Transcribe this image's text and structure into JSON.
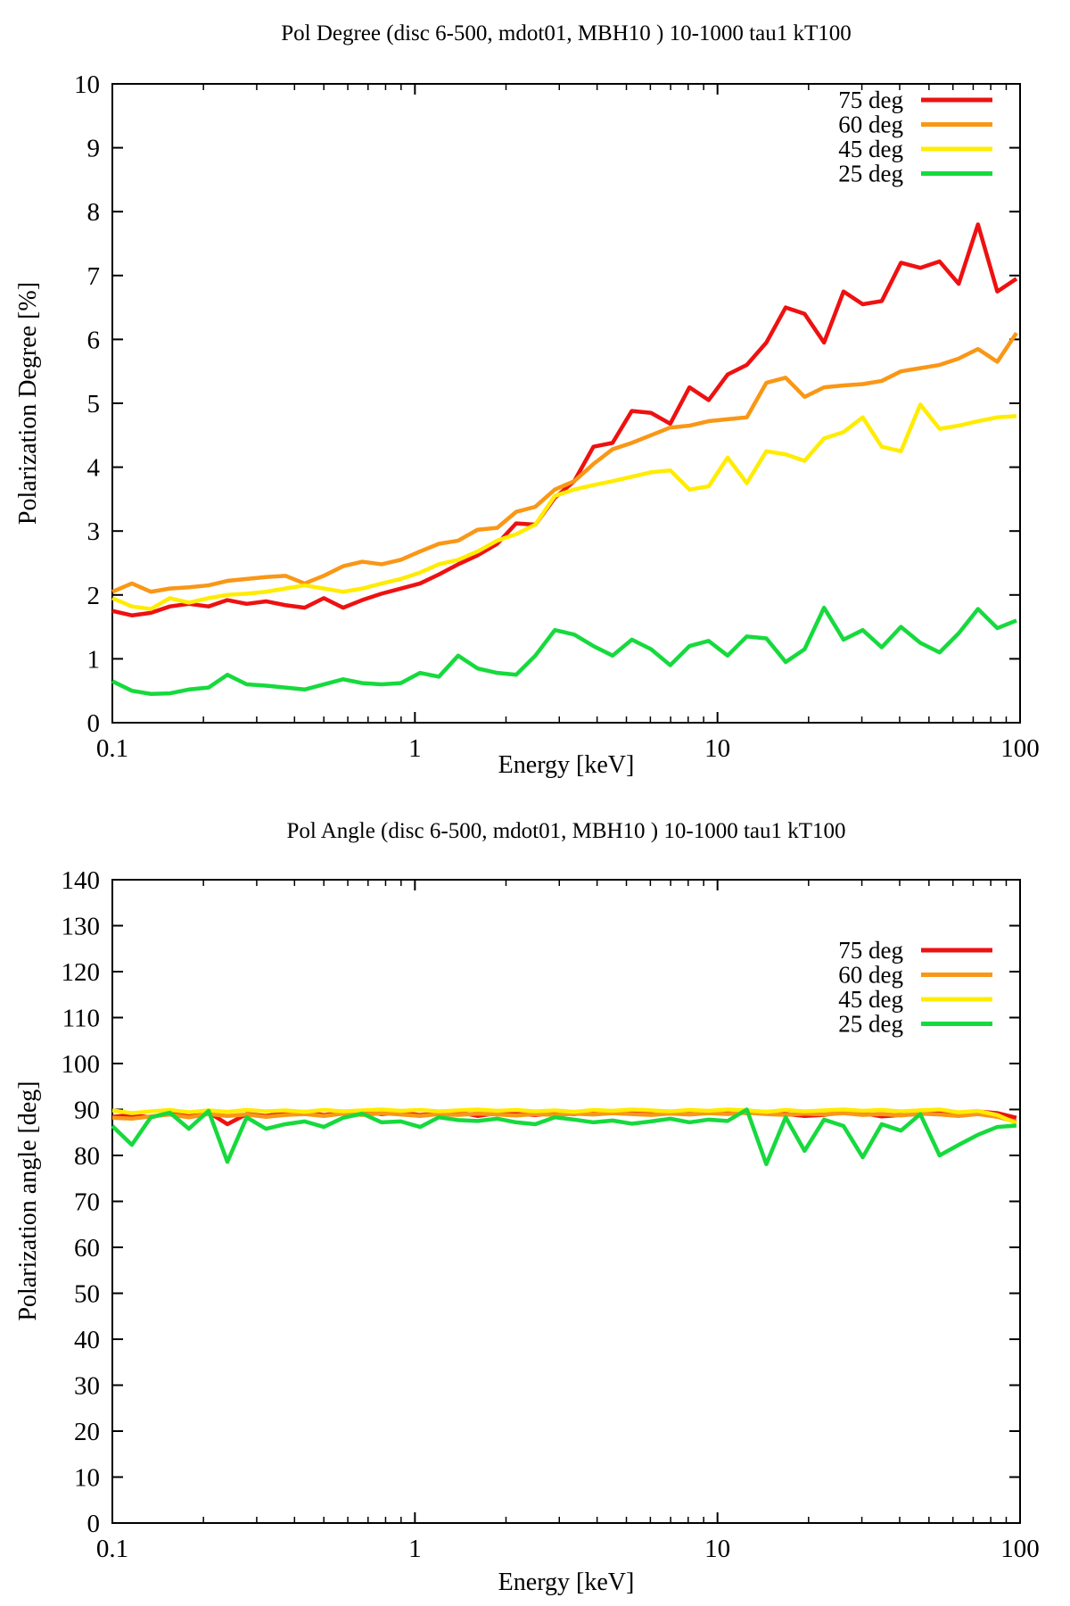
{
  "chart_data": [
    {
      "type": "line",
      "title": "Pol Degree (disc 6-500, mdot01, MBH10 ) 10-1000 tau1 kT100",
      "xlabel": "Energy [keV]",
      "ylabel": "Polarization Degree [%]",
      "xscale": "log",
      "xlim": [
        0.1,
        100
      ],
      "ylim": [
        0,
        10
      ],
      "ytick_step": 1,
      "xtick_labels": [
        "0.1",
        "1",
        "10",
        "100"
      ],
      "xtick_values": [
        0.1,
        1,
        10,
        100
      ],
      "grid": false,
      "legend_position": "top-right-inside",
      "x": [
        0.1,
        0.116,
        0.134,
        0.155,
        0.179,
        0.208,
        0.24,
        0.278,
        0.322,
        0.373,
        0.432,
        0.5,
        0.579,
        0.67,
        0.776,
        0.898,
        1.04,
        1.2,
        1.39,
        1.61,
        1.87,
        2.16,
        2.5,
        2.9,
        3.36,
        3.89,
        4.5,
        5.21,
        6.03,
        6.98,
        8.08,
        9.35,
        10.8,
        12.5,
        14.5,
        16.8,
        19.4,
        22.5,
        26.1,
        30.2,
        34.9,
        40.4,
        46.8,
        54.2,
        62.7,
        72.6,
        84.1,
        97.3
      ],
      "series": [
        {
          "name": "75 deg",
          "color": "#ee1111",
          "values": [
            1.75,
            1.68,
            1.72,
            1.82,
            1.86,
            1.82,
            1.92,
            1.86,
            1.9,
            1.84,
            1.8,
            1.95,
            1.8,
            1.92,
            2.02,
            2.1,
            2.18,
            2.32,
            2.48,
            2.62,
            2.8,
            3.12,
            3.1,
            3.52,
            3.78,
            4.32,
            4.38,
            4.88,
            4.85,
            4.68,
            5.25,
            5.05,
            5.45,
            5.6,
            5.95,
            6.5,
            6.4,
            5.95,
            6.75,
            6.55,
            6.6,
            7.2,
            7.12,
            7.22,
            6.87,
            7.8,
            6.75,
            6.95
          ]
        },
        {
          "name": "60 deg",
          "color": "#f99716",
          "values": [
            2.05,
            2.18,
            2.05,
            2.1,
            2.12,
            2.15,
            2.22,
            2.25,
            2.28,
            2.3,
            2.18,
            2.3,
            2.45,
            2.52,
            2.48,
            2.55,
            2.68,
            2.8,
            2.85,
            3.02,
            3.05,
            3.3,
            3.38,
            3.65,
            3.78,
            4.05,
            4.28,
            4.38,
            4.5,
            4.62,
            4.65,
            4.72,
            4.75,
            4.78,
            5.32,
            5.4,
            5.1,
            5.25,
            5.28,
            5.3,
            5.35,
            5.5,
            5.55,
            5.6,
            5.7,
            5.85,
            5.65,
            6.1
          ]
        },
        {
          "name": "45 deg",
          "color": "#ffec00",
          "values": [
            1.95,
            1.82,
            1.78,
            1.95,
            1.88,
            1.95,
            2.0,
            2.02,
            2.05,
            2.1,
            2.15,
            2.1,
            2.05,
            2.1,
            2.18,
            2.25,
            2.35,
            2.48,
            2.55,
            2.68,
            2.85,
            2.95,
            3.1,
            3.55,
            3.65,
            3.72,
            3.78,
            3.85,
            3.92,
            3.95,
            3.65,
            3.7,
            4.15,
            3.75,
            4.25,
            4.2,
            4.1,
            4.45,
            4.55,
            4.78,
            4.32,
            4.25,
            4.98,
            4.6,
            4.65,
            4.72,
            4.78,
            4.8
          ]
        },
        {
          "name": "25 deg",
          "color": "#16da3d",
          "values": [
            0.65,
            0.5,
            0.45,
            0.46,
            0.52,
            0.55,
            0.75,
            0.6,
            0.58,
            0.55,
            0.52,
            0.6,
            0.68,
            0.62,
            0.6,
            0.62,
            0.78,
            0.72,
            1.05,
            0.85,
            0.78,
            0.75,
            1.05,
            1.45,
            1.38,
            1.2,
            1.05,
            1.3,
            1.15,
            0.9,
            1.2,
            1.28,
            1.05,
            1.35,
            1.32,
            0.95,
            1.15,
            1.8,
            1.3,
            1.45,
            1.18,
            1.5,
            1.25,
            1.1,
            1.4,
            1.78,
            1.48,
            1.6
          ]
        }
      ]
    },
    {
      "type": "line",
      "title": "Pol Angle (disc 6-500, mdot01, MBH10 ) 10-1000 tau1 kT100",
      "xlabel": "Energy [keV]",
      "ylabel": "Polarization angle [deg]",
      "xscale": "log",
      "xlim": [
        0.1,
        100
      ],
      "ylim": [
        0,
        140
      ],
      "ytick_step": 10,
      "xtick_labels": [
        "0.1",
        "1",
        "10",
        "100"
      ],
      "xtick_values": [
        0.1,
        1,
        10,
        100
      ],
      "grid": false,
      "legend_position": "top-right-inside",
      "x": [
        0.1,
        0.116,
        0.134,
        0.155,
        0.179,
        0.208,
        0.24,
        0.278,
        0.322,
        0.373,
        0.432,
        0.5,
        0.579,
        0.67,
        0.776,
        0.898,
        1.04,
        1.2,
        1.39,
        1.61,
        1.87,
        2.16,
        2.5,
        2.9,
        3.36,
        3.89,
        4.5,
        5.21,
        6.03,
        6.98,
        8.08,
        9.35,
        10.8,
        12.5,
        14.5,
        16.8,
        19.4,
        22.5,
        26.1,
        30.2,
        34.9,
        40.4,
        46.8,
        54.2,
        62.7,
        72.6,
        84.1,
        97.3
      ],
      "series": [
        {
          "name": "75 deg",
          "color": "#ee1111",
          "values": [
            88.4,
            88.8,
            88.3,
            89.3,
            88.5,
            89.4,
            86.8,
            89.0,
            88.6,
            89.2,
            89.5,
            88.8,
            89.3,
            89.6,
            89.0,
            89.3,
            88.8,
            89.1,
            89.4,
            88.6,
            89.2,
            89.0,
            88.8,
            89.2,
            89.0,
            89.3,
            89.5,
            89.2,
            89.6,
            89.3,
            89.0,
            89.4,
            89.6,
            89.2,
            89.5,
            89.0,
            88.6,
            88.8,
            89.5,
            89.2,
            88.5,
            88.8,
            89.0,
            89.4,
            88.6,
            89.6,
            89.2,
            88.2
          ]
        },
        {
          "name": "60 deg",
          "color": "#f99716",
          "values": [
            88.2,
            88.0,
            88.5,
            88.9,
            88.3,
            89.0,
            88.6,
            88.9,
            88.4,
            88.8,
            89.0,
            88.6,
            89.1,
            88.8,
            89.2,
            88.9,
            88.6,
            89.0,
            88.8,
            89.1,
            88.9,
            88.7,
            89.0,
            88.8,
            89.1,
            88.9,
            89.2,
            89.0,
            88.8,
            89.1,
            88.9,
            89.2,
            89.0,
            89.3,
            89.0,
            88.8,
            89.1,
            88.9,
            89.2,
            88.8,
            89.0,
            88.7,
            89.1,
            88.9,
            88.6,
            89.0,
            88.4,
            87.3
          ]
        },
        {
          "name": "45 deg",
          "color": "#ffec00",
          "values": [
            89.8,
            89.2,
            89.6,
            89.9,
            89.4,
            89.8,
            89.5,
            89.9,
            89.6,
            89.8,
            89.5,
            89.9,
            89.6,
            89.8,
            90.0,
            89.7,
            89.9,
            89.6,
            89.8,
            90.0,
            89.7,
            89.9,
            89.6,
            89.8,
            89.5,
            89.9,
            89.7,
            90.0,
            89.8,
            89.6,
            89.9,
            89.7,
            90.0,
            89.8,
            89.5,
            89.9,
            89.6,
            89.8,
            90.0,
            89.7,
            89.9,
            89.6,
            89.8,
            90.0,
            89.4,
            89.7,
            88.8,
            87.0
          ]
        },
        {
          "name": "25 deg",
          "color": "#16da3d",
          "values": [
            86.4,
            82.3,
            88.3,
            89.3,
            85.8,
            89.7,
            78.6,
            88.3,
            85.8,
            86.8,
            87.4,
            86.2,
            88.2,
            89.1,
            87.2,
            87.4,
            86.2,
            88.3,
            87.7,
            87.5,
            88.0,
            87.2,
            86.8,
            88.3,
            87.8,
            87.2,
            87.6,
            86.9,
            87.4,
            88.0,
            87.2,
            87.8,
            87.5,
            90.0,
            78.1,
            88.3,
            81.0,
            87.8,
            86.4,
            79.6,
            86.8,
            85.4,
            89.0,
            80.0,
            82.3,
            84.5,
            86.2,
            86.5
          ]
        }
      ]
    }
  ]
}
